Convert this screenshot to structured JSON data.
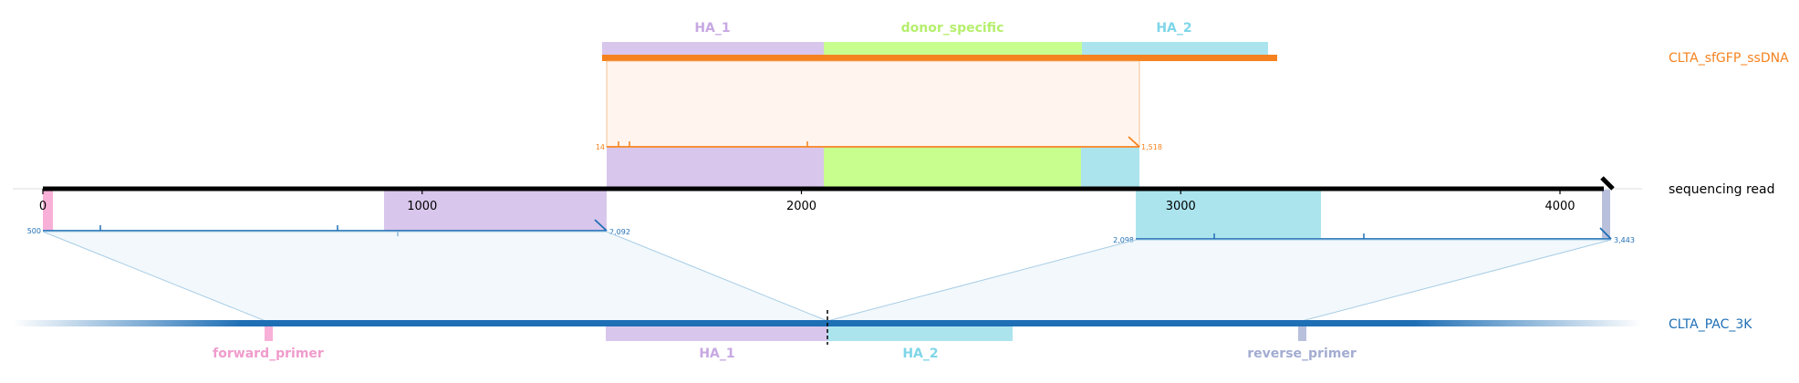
{
  "colors": {
    "ha1": "#d9c6ec",
    "ha1_text": "#c7a8e3",
    "donor": "#c8fe8e",
    "donor_text": "#b5ef6d",
    "ha2": "#ace4ee",
    "ha2_text": "#7fd6e8",
    "orange": "#f5821f",
    "blue": "#1f6fb5",
    "pink": "#f8b0d8",
    "pink_text": "#ef9ccc",
    "lavender": "#b8c0dc",
    "lavender_text": "#a3acd1",
    "black": "#000000"
  },
  "donor": {
    "name": "CLTA_sfGFP_ssDNA",
    "features": [
      {
        "name": "HA_1",
        "color_key": "ha1"
      },
      {
        "name": "donor_specific",
        "color_key": "donor"
      },
      {
        "name": "HA_2",
        "color_key": "ha2"
      }
    ],
    "alignment": {
      "start_label": "14",
      "end_label": "1,518"
    }
  },
  "read": {
    "name": "sequencing read",
    "axis": {
      "min": 0,
      "max": 4400,
      "ticks": [
        0,
        1000,
        2000,
        3000,
        4000
      ],
      "tick_labels": [
        "0",
        "1000",
        "2000",
        "3000",
        "4000"
      ]
    },
    "alignment_left": {
      "start": 0,
      "end": 1590,
      "start_label": "500",
      "end_label": "2,092"
    },
    "alignment_right": {
      "start": 3090,
      "end": 4420,
      "start_label": "2,098",
      "end_label": "3,443"
    }
  },
  "target": {
    "name": "CLTA_PAC_3K",
    "features": [
      {
        "name": "forward_primer",
        "color_key": "pink"
      },
      {
        "name": "HA_1",
        "color_key": "ha1"
      },
      {
        "name": "HA_2",
        "color_key": "ha2"
      },
      {
        "name": "reverse_primer",
        "color_key": "lavender"
      }
    ]
  }
}
